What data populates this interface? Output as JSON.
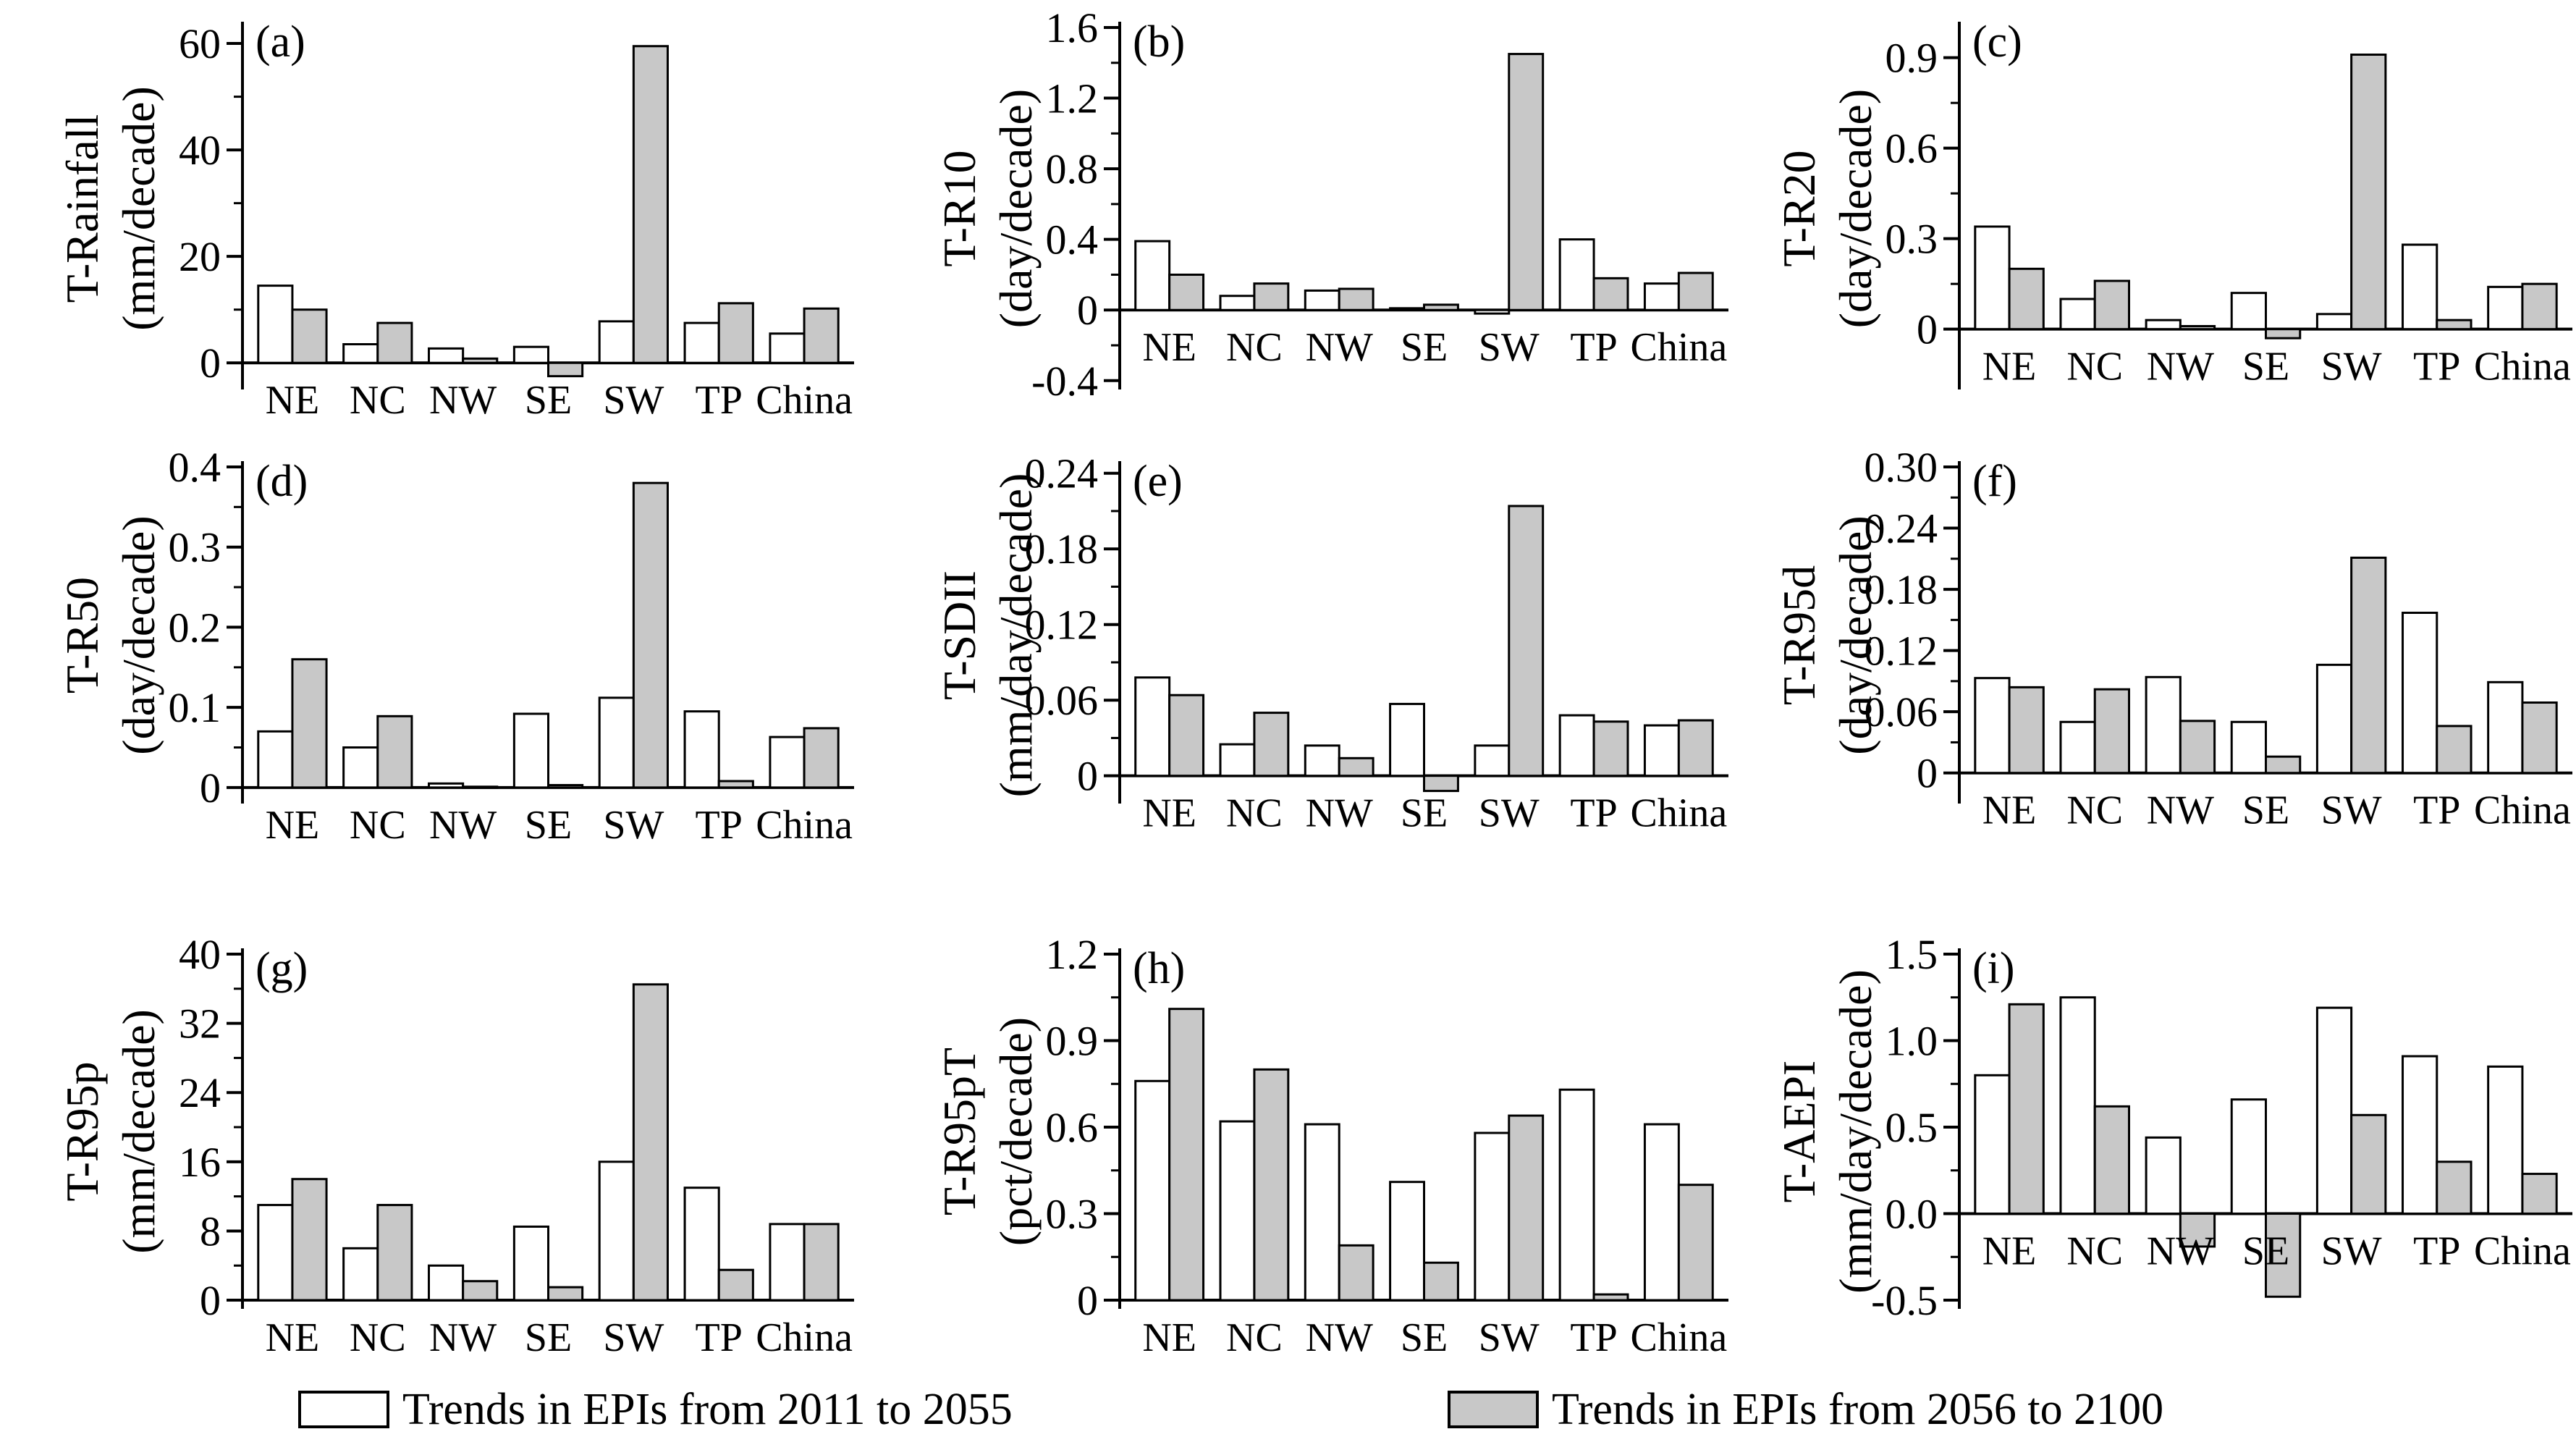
{
  "colors": {
    "series_1": "#ffffff",
    "series_2": "#c8c8c8",
    "stroke": "#000000"
  },
  "legend": [
    {
      "label": "Trends in EPIs from 2011 to 2055"
    },
    {
      "label": "Trends in EPIs from 2056 to 2100"
    }
  ],
  "chart_data": [
    {
      "type": "bar",
      "panel": "(a)",
      "ylabel": [
        "T-Rainfall",
        "(mm/decade)"
      ],
      "categories": [
        "NE",
        "NC",
        "NW",
        "SE",
        "SW",
        "TP",
        "China"
      ],
      "ylim": [
        -5,
        63
      ],
      "yticks": [
        0,
        20,
        40,
        60
      ],
      "ytick_labels": [
        "0",
        "20",
        "40",
        "60"
      ],
      "series": [
        {
          "name": "Trends in EPIs from 2011 to 2055",
          "values": [
            14.5,
            3.5,
            2.7,
            3.0,
            7.8,
            7.5,
            5.5
          ]
        },
        {
          "name": "Trends in EPIs from 2056 to 2100",
          "values": [
            10.0,
            7.5,
            0.8,
            -2.5,
            59.5,
            11.2,
            10.2
          ]
        }
      ]
    },
    {
      "type": "bar",
      "panel": "(b)",
      "ylabel": [
        "T-R10",
        "(day/decade)"
      ],
      "categories": [
        "NE",
        "NC",
        "NW",
        "SE",
        "SW",
        "TP",
        "China"
      ],
      "ylim": [
        -0.45,
        1.6
      ],
      "yticks": [
        -0.4,
        0,
        0.4,
        0.8,
        1.2,
        1.6
      ],
      "ytick_labels": [
        "-0.4",
        "0",
        "0.4",
        "0.8",
        "1.2",
        "1.6"
      ],
      "series": [
        {
          "name": "Trends in EPIs from 2011 to 2055",
          "values": [
            0.39,
            0.08,
            0.11,
            0.01,
            -0.02,
            0.4,
            0.15
          ]
        },
        {
          "name": "Trends in EPIs from 2056 to 2100",
          "values": [
            0.2,
            0.15,
            0.12,
            0.03,
            1.45,
            0.18,
            0.21
          ]
        }
      ]
    },
    {
      "type": "bar",
      "panel": "(c)",
      "ylabel": [
        "T-R20",
        "(day/decade)"
      ],
      "categories": [
        "NE",
        "NC",
        "NW",
        "SE",
        "SW",
        "TP",
        "China"
      ],
      "ylim": [
        -0.2,
        1.0
      ],
      "yticks": [
        0,
        0.3,
        0.6,
        0.9
      ],
      "ytick_labels": [
        "0",
        "0.3",
        "0.6",
        "0.9"
      ],
      "series": [
        {
          "name": "Trends in EPIs from 2011 to 2055",
          "values": [
            0.34,
            0.1,
            0.03,
            0.12,
            0.05,
            0.28,
            0.14
          ]
        },
        {
          "name": "Trends in EPIs from 2056 to 2100",
          "values": [
            0.2,
            0.16,
            0.01,
            -0.03,
            0.91,
            0.03,
            0.15
          ]
        }
      ]
    },
    {
      "type": "bar",
      "panel": "(d)",
      "ylabel": [
        "T-R50",
        "(day/decade)"
      ],
      "categories": [
        "NE",
        "NC",
        "NW",
        "SE",
        "SW",
        "TP",
        "China"
      ],
      "ylim": [
        -0.02,
        0.4
      ],
      "yticks": [
        0,
        0.1,
        0.2,
        0.3,
        0.4
      ],
      "ytick_labels": [
        "0",
        "0.1",
        "0.2",
        "0.3",
        "0.4"
      ],
      "series": [
        {
          "name": "Trends in EPIs from 2011 to 2055",
          "values": [
            0.07,
            0.05,
            0.005,
            0.092,
            0.112,
            0.095,
            0.063
          ]
        },
        {
          "name": "Trends in EPIs from 2056 to 2100",
          "values": [
            0.16,
            0.089,
            0.001,
            0.003,
            0.38,
            0.008,
            0.074
          ]
        }
      ]
    },
    {
      "type": "bar",
      "panel": "(e)",
      "ylabel": [
        "T-SDII",
        "(mm/day/decade)"
      ],
      "categories": [
        "NE",
        "NC",
        "NW",
        "SE",
        "SW",
        "TP",
        "China"
      ],
      "ylim": [
        -0.022,
        0.245
      ],
      "yticks": [
        0,
        0.06,
        0.12,
        0.18,
        0.24
      ],
      "ytick_labels": [
        "0",
        "0.06",
        "0.12",
        "0.18",
        "0.24"
      ],
      "series": [
        {
          "name": "Trends in EPIs from 2011 to 2055",
          "values": [
            0.078,
            0.025,
            0.024,
            0.057,
            0.024,
            0.048,
            0.04
          ]
        },
        {
          "name": "Trends in EPIs from 2056 to 2100",
          "values": [
            0.064,
            0.05,
            0.014,
            -0.012,
            0.214,
            0.043,
            0.044
          ]
        }
      ]
    },
    {
      "type": "bar",
      "panel": "(f)",
      "ylabel": [
        "T-R95d",
        "(day/decade)"
      ],
      "categories": [
        "NE",
        "NC",
        "NW",
        "SE",
        "SW",
        "TP",
        "China"
      ],
      "ylim": [
        -0.03,
        0.3
      ],
      "yticks": [
        0,
        0.06,
        0.12,
        0.18,
        0.24,
        0.3
      ],
      "ytick_labels": [
        "0",
        "0.06",
        "0.12",
        "0.18",
        "0.24",
        "0.30"
      ],
      "series": [
        {
          "name": "Trends in EPIs from 2011 to 2055",
          "values": [
            0.093,
            0.05,
            0.094,
            0.05,
            0.106,
            0.157,
            0.089
          ]
        },
        {
          "name": "Trends in EPIs from 2056 to 2100",
          "values": [
            0.084,
            0.082,
            0.051,
            0.016,
            0.211,
            0.046,
            0.069
          ]
        }
      ]
    },
    {
      "type": "bar",
      "panel": "(g)",
      "ylabel": [
        "T-R95p",
        "(mm/decade)"
      ],
      "categories": [
        "NE",
        "NC",
        "NW",
        "SE",
        "SW",
        "TP",
        "China"
      ],
      "ylim": [
        -1,
        40
      ],
      "yticks": [
        0,
        8,
        16,
        24,
        32,
        40
      ],
      "ytick_labels": [
        "0",
        "8",
        "16",
        "24",
        "32",
        "40"
      ],
      "series": [
        {
          "name": "Trends in EPIs from 2011 to 2055",
          "values": [
            11,
            6,
            4,
            8.5,
            16,
            13,
            8.8
          ]
        },
        {
          "name": "Trends in EPIs from 2056 to 2100",
          "values": [
            14,
            11,
            2.2,
            1.5,
            36.5,
            3.5,
            8.8
          ]
        }
      ]
    },
    {
      "type": "bar",
      "panel": "(h)",
      "ylabel": [
        "T-R95pT",
        "(pct/decade)"
      ],
      "categories": [
        "NE",
        "NC",
        "NW",
        "SE",
        "SW",
        "TP",
        "China"
      ],
      "ylim": [
        -0.03,
        1.2
      ],
      "yticks": [
        0,
        0.3,
        0.6,
        0.9,
        1.2
      ],
      "ytick_labels": [
        "0",
        "0.3",
        "0.6",
        "0.9",
        "1.2"
      ],
      "series": [
        {
          "name": "Trends in EPIs from 2011 to 2055",
          "values": [
            0.76,
            0.62,
            0.61,
            0.41,
            0.58,
            0.73,
            0.61
          ]
        },
        {
          "name": "Trends in EPIs from 2056 to 2100",
          "values": [
            1.01,
            0.8,
            0.19,
            0.13,
            0.64,
            0.02,
            0.4
          ]
        }
      ]
    },
    {
      "type": "bar",
      "panel": "(i)",
      "ylabel": [
        "T-AEPI",
        "(mm/day/decade)"
      ],
      "categories": [
        "NE",
        "NC",
        "NW",
        "SE",
        "SW",
        "TP",
        "China"
      ],
      "ylim": [
        -0.55,
        1.5
      ],
      "yticks": [
        -0.5,
        0,
        0.5,
        1.0,
        1.5
      ],
      "ytick_labels": [
        "-0.5",
        "0.0",
        "0.5",
        "1.0",
        "1.5"
      ],
      "series": [
        {
          "name": "Trends in EPIs from 2011 to 2055",
          "values": [
            0.8,
            1.25,
            0.44,
            0.66,
            1.19,
            0.91,
            0.85
          ]
        },
        {
          "name": "Trends in EPIs from 2056 to 2100",
          "values": [
            1.21,
            0.62,
            -0.19,
            -0.48,
            0.57,
            0.3,
            0.23
          ]
        }
      ]
    }
  ]
}
